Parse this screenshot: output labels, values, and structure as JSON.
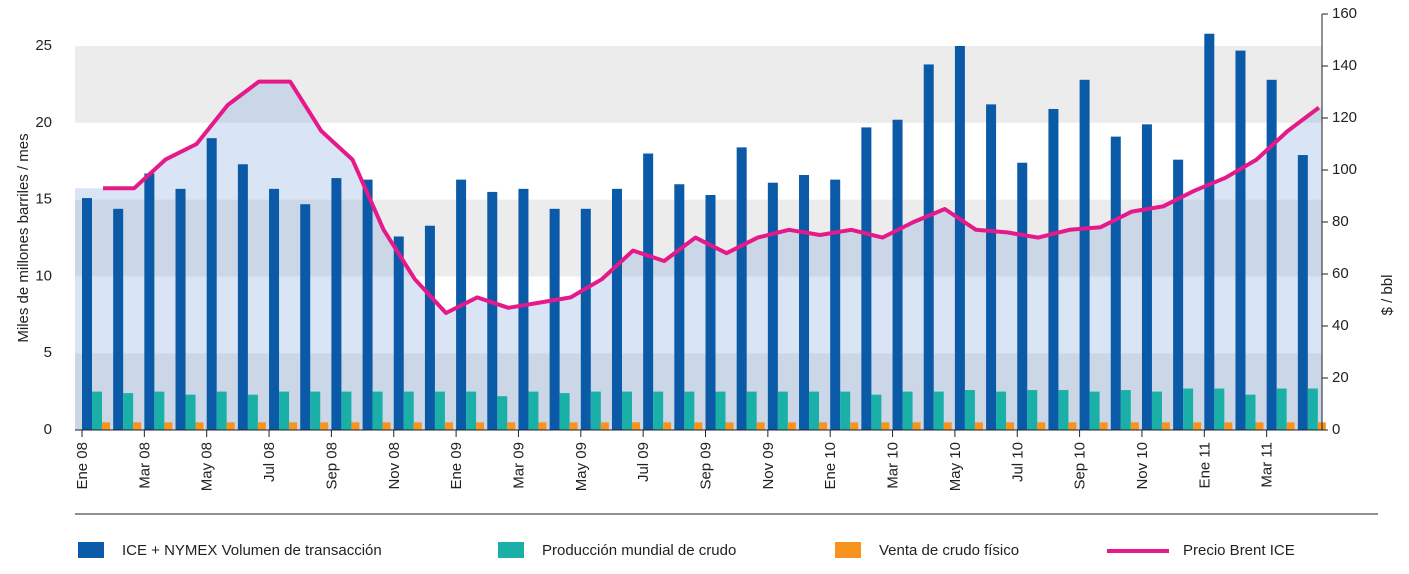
{
  "chart_data": {
    "type": "bar_line",
    "y_label": "Miles de millones barriles / mes",
    "y2_label": "$ / bbl",
    "categories": [
      "Ene 08",
      null,
      "Mar 08",
      null,
      "May 08",
      null,
      "Jul 08",
      null,
      "Sep 08",
      null,
      "Nov 08",
      null,
      "Ene 09",
      null,
      "Mar 09",
      null,
      "May 09",
      null,
      "Jul 09",
      null,
      "Sep 09",
      null,
      "Nov 09",
      null,
      "Ene 10",
      null,
      "Mar 10",
      null,
      "May 10",
      null,
      "Jul 10",
      null,
      "Sep 10",
      null,
      "Nov 10",
      null,
      "Ene 11",
      null,
      "Mar 11",
      null
    ],
    "series": [
      {
        "name": "ICE + NYMEX Volumen de transacción",
        "color": "#0a5aa8",
        "kind": "bar",
        "values": [
          15.1,
          14.4,
          16.7,
          15.7,
          19.0,
          17.3,
          15.7,
          14.7,
          16.4,
          16.3,
          12.6,
          13.3,
          16.3,
          15.5,
          15.7,
          14.4,
          14.4,
          15.7,
          18.0,
          16.0,
          15.3,
          18.4,
          16.1,
          16.6,
          16.3,
          19.7,
          20.2,
          23.8,
          25.0,
          21.2,
          17.4,
          20.9,
          22.8,
          19.1,
          19.9,
          17.6,
          25.8,
          24.7,
          22.8,
          17.9
        ]
      },
      {
        "name": "Producción mundial de crudo",
        "color": "#1aafa7",
        "kind": "bar",
        "values": [
          2.5,
          2.4,
          2.5,
          2.3,
          2.5,
          2.3,
          2.5,
          2.5,
          2.5,
          2.5,
          2.5,
          2.5,
          2.5,
          2.2,
          2.5,
          2.4,
          2.5,
          2.5,
          2.5,
          2.5,
          2.5,
          2.5,
          2.5,
          2.5,
          2.5,
          2.3,
          2.5,
          2.5,
          2.6,
          2.5,
          2.6,
          2.6,
          2.5,
          2.6,
          2.5,
          2.7,
          2.7,
          2.3,
          2.7,
          2.7
        ]
      },
      {
        "name": "Venta de crudo físico",
        "color": "#f7931e",
        "kind": "bar",
        "values": [
          0.5,
          0.5,
          0.5,
          0.5,
          0.5,
          0.5,
          0.5,
          0.5,
          0.5,
          0.5,
          0.5,
          0.5,
          0.5,
          0.5,
          0.5,
          0.5,
          0.5,
          0.5,
          0.5,
          0.5,
          0.5,
          0.5,
          0.5,
          0.5,
          0.5,
          0.5,
          0.5,
          0.5,
          0.5,
          0.5,
          0.5,
          0.5,
          0.5,
          0.5,
          0.5,
          0.5,
          0.5,
          0.5,
          0.5,
          0.5
        ]
      },
      {
        "name": "Precio Brent ICE",
        "color": "#e5198a",
        "kind": "line",
        "axis": "y2",
        "values": [
          93,
          93,
          104,
          110,
          125,
          134,
          134,
          115,
          104,
          77,
          58,
          45,
          51,
          47,
          49,
          51,
          58,
          69,
          65,
          74,
          68,
          74,
          77,
          75,
          77,
          74,
          80,
          85,
          77,
          76,
          74,
          77,
          78,
          84,
          86,
          92,
          97,
          104,
          115,
          124
        ]
      }
    ],
    "ylim": [
      0,
      25
    ],
    "yticks": [
      0,
      5,
      10,
      15,
      20,
      25
    ],
    "y2lim": [
      0,
      160
    ],
    "y2ticks": [
      0,
      20,
      40,
      60,
      80,
      100,
      120,
      140,
      160
    ],
    "grid_bands": true
  }
}
